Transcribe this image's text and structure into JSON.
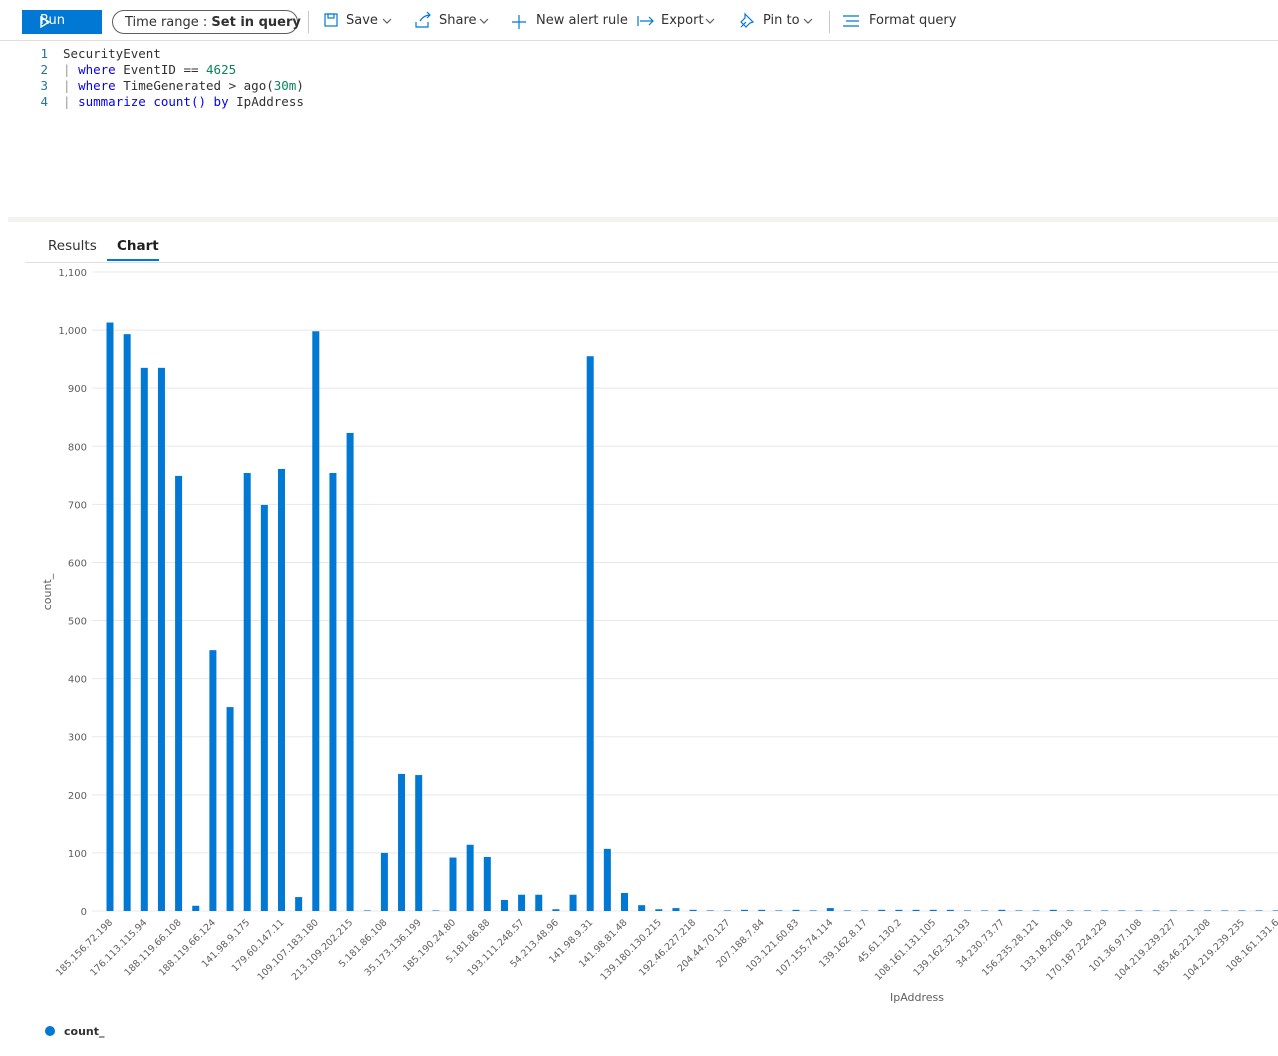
{
  "toolbar": {
    "run": "Run",
    "time_range_label": "Time range :",
    "time_range_value": "Set in query",
    "save": "Save",
    "share": "Share",
    "new_alert_rule": "New alert rule",
    "export": "Export",
    "pin_to": "Pin to",
    "format_query": "Format query"
  },
  "query": {
    "line_numbers": [
      "1",
      "2",
      "3",
      "4"
    ],
    "lines": [
      [
        "SecurityEvent"
      ],
      [
        "|",
        "where",
        "EventID ==",
        "4625"
      ],
      [
        "|",
        "where",
        "TimeGenerated > ago(",
        "30m",
        ")"
      ],
      [
        "|",
        "summarize",
        "count()",
        "by",
        "IpAddress"
      ]
    ]
  },
  "tabs": [
    "Results",
    "Chart"
  ],
  "chart_data": {
    "type": "bar",
    "y_label": "count_",
    "x_label": "IpAddress",
    "color": "#0078d4",
    "grid": true,
    "legend": "bottom-left",
    "ylim": [
      0,
      1100
    ],
    "yticks": [
      0,
      100,
      200,
      300,
      400,
      500,
      600,
      700,
      800,
      900,
      {
        "value": 1000,
        "label": "1,000"
      },
      {
        "value": 1100,
        "label": "1,100"
      }
    ],
    "categories": [
      "185.156.72.198",
      null,
      "176.113.115.94",
      null,
      "188.119.66.108",
      null,
      "188.119.66.124",
      null,
      "141.98.9.175",
      null,
      "179.60.147.11",
      null,
      "109.107.183.180",
      null,
      "213.109.202.215",
      null,
      "5.181.86.108",
      null,
      "35.173.136.199",
      null,
      "185.190.24.80",
      null,
      "5.181.86.88",
      null,
      "193.111.248.57",
      null,
      "54.213.48.96",
      null,
      "141.98.9.31",
      null,
      "141.98.81.48",
      null,
      "139.180.130.215",
      null,
      "192.46.227.218",
      null,
      "204.44.70.127",
      null,
      "207.188.7.84",
      null,
      "103.121.60.83",
      null,
      "107.155.74.114",
      null,
      "139.162.8.17",
      null,
      "45.61.130.2",
      null,
      "108.161.131.105",
      null,
      "139.162.32.193",
      null,
      "34.230.73.77",
      null,
      "156.235.28.121",
      null,
      "133.18.206.18",
      null,
      "170.187.224.229",
      null,
      "101.36.97.108",
      null,
      "104.219.239.227",
      null,
      "185.46.221.208",
      null,
      "104.219.239.235",
      null,
      "108.161.131.6",
      null
    ],
    "series": [
      {
        "name": "count_",
        "color": "#0078d4",
        "values": [
          1013,
          993,
          935,
          935,
          749,
          9,
          449,
          351,
          754,
          699,
          761,
          24,
          998,
          754,
          823,
          1,
          100,
          236,
          234,
          1,
          92,
          114,
          93,
          19,
          28,
          28,
          3,
          28,
          955,
          107,
          31,
          10,
          3,
          5,
          2,
          1,
          1,
          2,
          2,
          1,
          2,
          1,
          5,
          1,
          1,
          2,
          2,
          2,
          2,
          2,
          1,
          1,
          2,
          1,
          1,
          2,
          1,
          1,
          1,
          1,
          1,
          1,
          1,
          1,
          1,
          1,
          1,
          1,
          1,
          1
        ]
      }
    ]
  }
}
